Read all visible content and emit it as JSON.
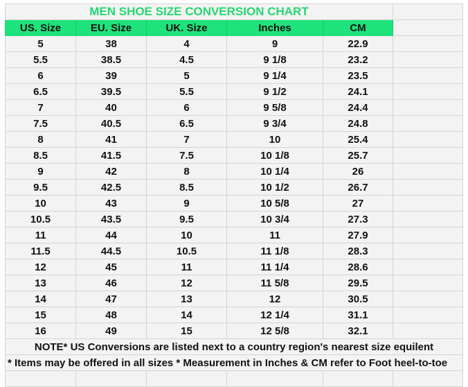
{
  "title": "MEN SHOE SIZE CONVERSION CHART",
  "headers": [
    "US. Size",
    "EU. Size",
    "UK. Size",
    "Inches",
    "CM"
  ],
  "rows": [
    [
      "5",
      "38",
      "4",
      "9",
      "22.9"
    ],
    [
      "5.5",
      "38.5",
      "4.5",
      "9 1/8",
      "23.2"
    ],
    [
      "6",
      "39",
      "5",
      "9 1/4",
      "23.5"
    ],
    [
      "6.5",
      "39.5",
      "5.5",
      "9 1/2",
      "24.1"
    ],
    [
      "7",
      "40",
      "6",
      "9 5/8",
      "24.4"
    ],
    [
      "7.5",
      "40.5",
      "6.5",
      "9 3/4",
      "24.8"
    ],
    [
      "8",
      "41",
      "7",
      "10",
      "25.4"
    ],
    [
      "8.5",
      "41.5",
      "7.5",
      "10 1/8",
      "25.7"
    ],
    [
      "9",
      "42",
      "8",
      "10 1/4",
      "26"
    ],
    [
      "9.5",
      "42.5",
      "8.5",
      "10 1/2",
      "26.7"
    ],
    [
      "10",
      "43",
      "9",
      "10 5/8",
      "27"
    ],
    [
      "10.5",
      "43.5",
      "9.5",
      "10 3/4",
      "27.3"
    ],
    [
      "11",
      "44",
      "10",
      "11",
      "27.9"
    ],
    [
      "11.5",
      "44.5",
      "10.5",
      "11 1/8",
      "28.3"
    ],
    [
      "12",
      "45",
      "11",
      "11 1/4",
      "28.6"
    ],
    [
      "13",
      "46",
      "12",
      "11 5/8",
      "29.5"
    ],
    [
      "14",
      "47",
      "13",
      "12",
      "30.5"
    ],
    [
      "15",
      "48",
      "14",
      "12 1/4",
      "31.1"
    ],
    [
      "16",
      "49",
      "15",
      "12 5/8",
      "32.1"
    ]
  ],
  "note1": "NOTE* US Conversions are listed next to a country region's nearest size equilent",
  "note2": "* Items may be offered in all sizes * Measurement in Inches & CM refer to Foot heel-to-toe",
  "colors": {
    "title": "#24d870",
    "header_fill": "#1ee27b",
    "grid": "#d4d4d4"
  }
}
